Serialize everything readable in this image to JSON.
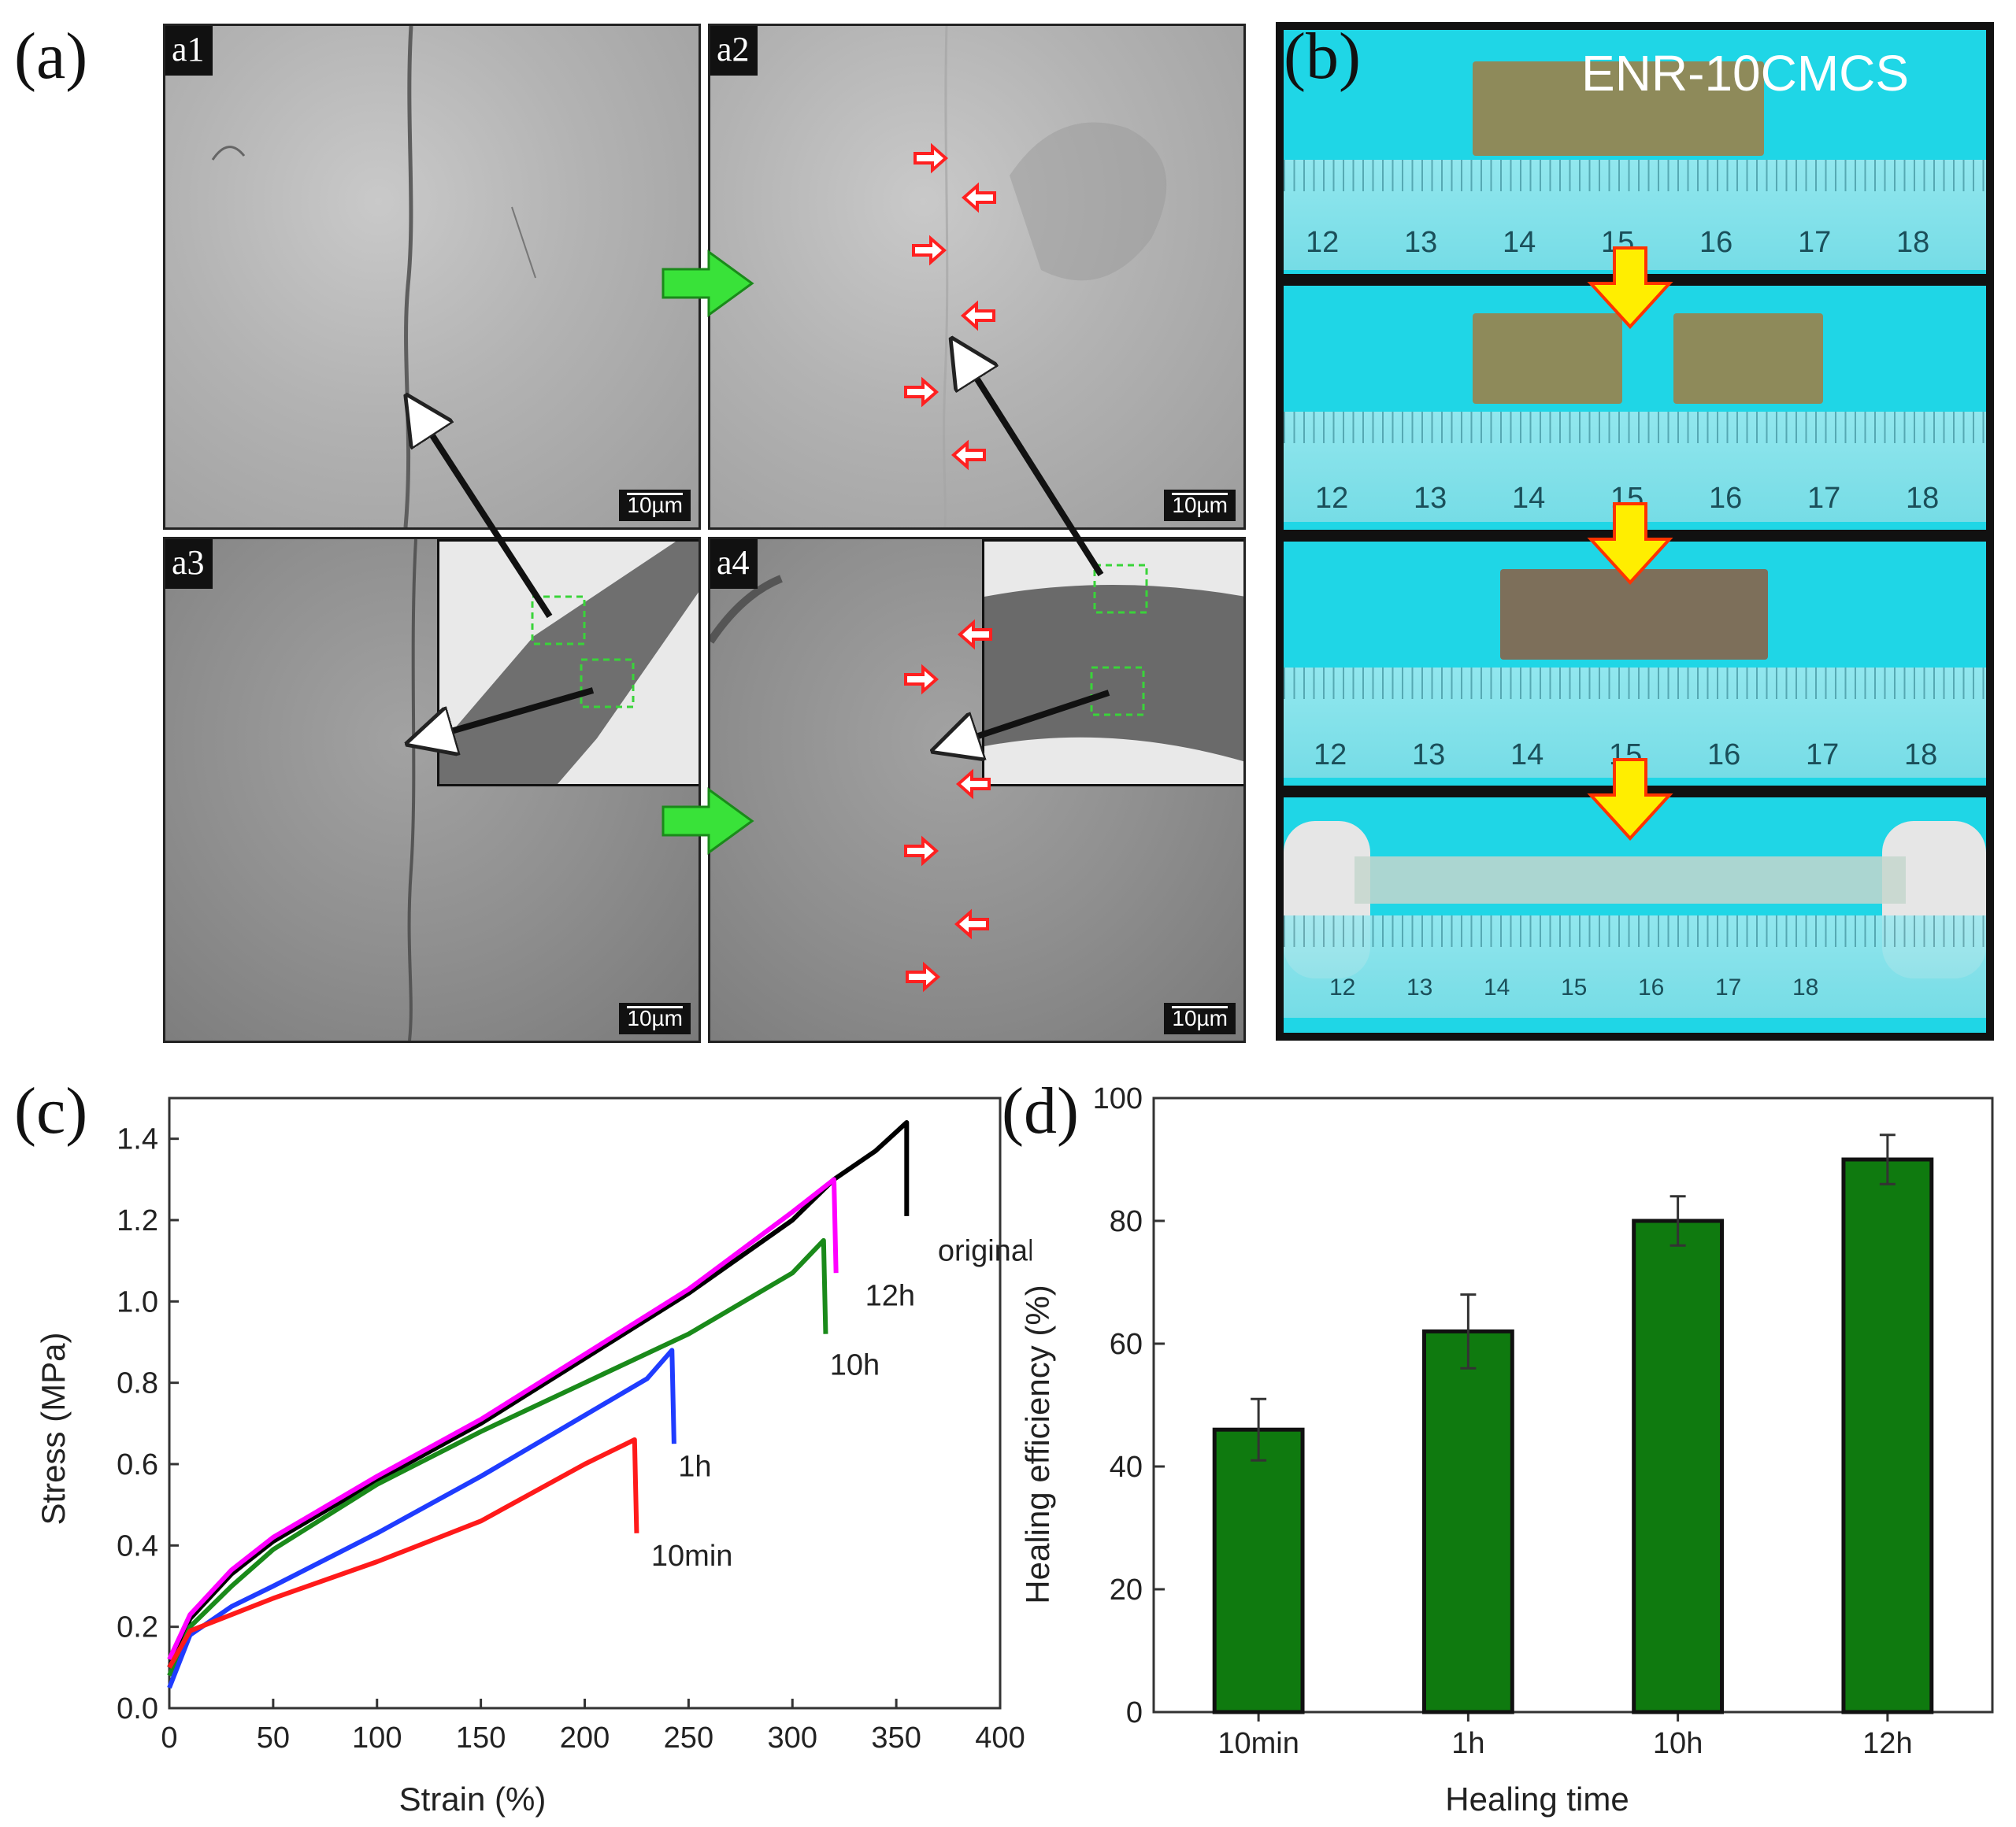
{
  "figure": {
    "panel_a": {
      "label": "(a)",
      "sub_panels": [
        {
          "label": "a1",
          "scale_bar": "10µm"
        },
        {
          "label": "a2",
          "scale_bar": "10µm"
        },
        {
          "label": "a3",
          "scale_bar": "10µm"
        },
        {
          "label": "a4",
          "scale_bar": "10µm"
        }
      ]
    },
    "panel_b": {
      "label": "(b)",
      "sample_name": "ENR-10CMCS",
      "ruler_numbers": [
        "12",
        "13",
        "14",
        "15",
        "16",
        "17",
        "18"
      ]
    },
    "panel_c": {
      "label": "(c)"
    },
    "panel_d": {
      "label": "(d)"
    }
  },
  "chart_data": [
    {
      "type": "line",
      "id": "stress-strain",
      "title": "",
      "xlabel": "Strain (%)",
      "ylabel": "Stress (MPa)",
      "xlim": [
        0,
        400
      ],
      "ylim": [
        0,
        1.5
      ],
      "xticks": [
        0,
        50,
        100,
        150,
        200,
        250,
        300,
        350,
        400
      ],
      "yticks": [
        0.0,
        0.2,
        0.4,
        0.6,
        0.8,
        1.0,
        1.2,
        1.4
      ],
      "series": [
        {
          "name": "original",
          "color": "#000000",
          "x": [
            0,
            10,
            30,
            50,
            100,
            150,
            200,
            250,
            300,
            320,
            340,
            355,
            355
          ],
          "y": [
            0.1,
            0.22,
            0.33,
            0.41,
            0.56,
            0.7,
            0.86,
            1.02,
            1.2,
            1.3,
            1.37,
            1.44,
            1.21
          ],
          "label_at": [
            370,
            1.1
          ]
        },
        {
          "name": "12h",
          "color": "#ff00ff",
          "x": [
            0,
            10,
            30,
            50,
            100,
            150,
            200,
            250,
            300,
            320,
            321
          ],
          "y": [
            0.12,
            0.23,
            0.34,
            0.42,
            0.57,
            0.71,
            0.87,
            1.03,
            1.22,
            1.3,
            1.07
          ],
          "label_at": [
            335,
            0.99
          ]
        },
        {
          "name": "10h",
          "color": "#1a8a1a",
          "x": [
            0,
            10,
            30,
            50,
            100,
            150,
            200,
            250,
            300,
            315,
            316
          ],
          "y": [
            0.08,
            0.2,
            0.3,
            0.39,
            0.55,
            0.68,
            0.8,
            0.92,
            1.07,
            1.15,
            0.92
          ],
          "label_at": [
            318,
            0.82
          ]
        },
        {
          "name": "1h",
          "color": "#1f3cff",
          "x": [
            0,
            10,
            30,
            50,
            100,
            150,
            200,
            230,
            242,
            243
          ],
          "y": [
            0.05,
            0.18,
            0.25,
            0.3,
            0.43,
            0.57,
            0.72,
            0.81,
            0.88,
            0.65
          ],
          "label_at": [
            245,
            0.57
          ]
        },
        {
          "name": "10min",
          "color": "#ff1a1a",
          "x": [
            0,
            10,
            30,
            50,
            100,
            150,
            200,
            220,
            224,
            225
          ],
          "y": [
            0.1,
            0.19,
            0.23,
            0.27,
            0.36,
            0.46,
            0.6,
            0.65,
            0.66,
            0.43
          ],
          "label_at": [
            232,
            0.35
          ]
        }
      ]
    },
    {
      "type": "bar",
      "id": "healing-efficiency",
      "title": "",
      "xlabel": "Healing time",
      "ylabel": "Healing efficiency (%)",
      "ylim": [
        0,
        100
      ],
      "yticks": [
        0,
        20,
        40,
        60,
        80,
        100
      ],
      "categories": [
        "10min",
        "1h",
        "10h",
        "12h"
      ],
      "values": [
        46,
        62,
        80,
        90
      ],
      "errors": [
        5,
        6,
        4,
        4
      ],
      "bar_color": "#0f7a0f"
    }
  ]
}
